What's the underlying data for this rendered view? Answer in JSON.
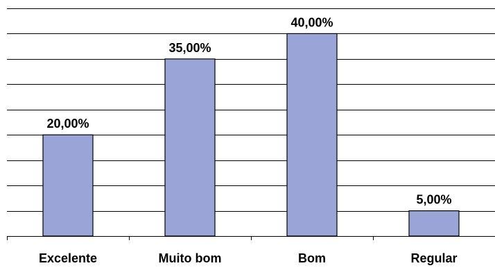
{
  "chart_data": {
    "type": "bar",
    "categories": [
      "Excelente",
      "Muito bom",
      "Bom",
      "Regular"
    ],
    "values": [
      20.0,
      35.0,
      40.0,
      5.0
    ],
    "data_labels": [
      "20,00%",
      "35,00%",
      "40,00%",
      "5,00%"
    ],
    "title": "",
    "xlabel": "",
    "ylabel": "",
    "ylim": [
      0,
      45
    ],
    "grid": true,
    "legend": "none",
    "bar_color": "#9aa4d6"
  }
}
